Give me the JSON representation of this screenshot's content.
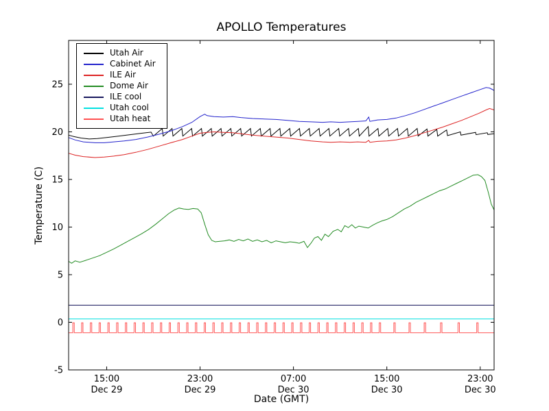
{
  "chart_data": {
    "type": "line",
    "title": "APOLLO Temperatures",
    "xlabel": "Date (GMT)",
    "ylabel": "Temperature (C)",
    "xlim": [
      11.74,
      48.19
    ],
    "ylim": [
      -5,
      29.6
    ],
    "grid": false,
    "legend_position": "upper left",
    "x_ticks": [
      {
        "value": 15,
        "label": [
          "15:00",
          "Dec 29"
        ]
      },
      {
        "value": 23,
        "label": [
          "23:00",
          "Dec 29"
        ]
      },
      {
        "value": 31,
        "label": [
          "07:00",
          "Dec 30"
        ]
      },
      {
        "value": 39,
        "label": [
          "15:00",
          "Dec 30"
        ]
      },
      {
        "value": 47,
        "label": [
          "23:00",
          "Dec 30"
        ]
      }
    ],
    "y_ticks": [
      {
        "value": -5,
        "label": "-5"
      },
      {
        "value": 0,
        "label": "0"
      },
      {
        "value": 5,
        "label": "5"
      },
      {
        "value": 10,
        "label": "10"
      },
      {
        "value": 15,
        "label": "15"
      },
      {
        "value": 20,
        "label": "20"
      },
      {
        "value": 25,
        "label": "25"
      }
    ],
    "series": [
      {
        "name": "Utah Air",
        "color": "#000000",
        "type": "line",
        "points": [
          [
            11.74,
            19.65
          ],
          [
            12.2,
            19.5
          ],
          [
            12.8,
            19.35
          ],
          [
            13.5,
            19.25
          ],
          [
            14.2,
            19.3
          ],
          [
            15.0,
            19.4
          ],
          [
            16.0,
            19.55
          ],
          [
            17.0,
            19.7
          ],
          [
            18.0,
            19.85
          ],
          [
            18.8,
            19.97
          ],
          [
            19.0,
            19.55
          ],
          [
            19.76,
            20.35
          ],
          [
            19.84,
            19.55
          ],
          [
            20.6,
            20.35
          ],
          [
            20.68,
            19.55
          ],
          [
            21.44,
            20.35
          ],
          [
            21.52,
            19.55
          ],
          [
            22.28,
            20.35
          ],
          [
            22.36,
            19.55
          ],
          [
            23.12,
            20.35
          ],
          [
            23.2,
            19.55
          ],
          [
            23.96,
            20.35
          ],
          [
            24.04,
            19.55
          ],
          [
            24.8,
            20.35
          ],
          [
            24.88,
            19.55
          ],
          [
            25.64,
            20.35
          ],
          [
            25.72,
            19.55
          ],
          [
            26.48,
            20.35
          ],
          [
            26.56,
            19.55
          ],
          [
            27.32,
            20.35
          ],
          [
            27.4,
            19.55
          ],
          [
            28.16,
            20.35
          ],
          [
            28.24,
            19.55
          ],
          [
            29.0,
            20.35
          ],
          [
            29.08,
            19.55
          ],
          [
            29.84,
            20.35
          ],
          [
            29.92,
            19.55
          ],
          [
            30.68,
            20.35
          ],
          [
            30.76,
            19.55
          ],
          [
            31.52,
            20.35
          ],
          [
            31.6,
            19.55
          ],
          [
            32.36,
            20.35
          ],
          [
            32.44,
            19.55
          ],
          [
            33.2,
            20.35
          ],
          [
            33.28,
            19.55
          ],
          [
            34.04,
            20.35
          ],
          [
            34.12,
            19.55
          ],
          [
            34.88,
            20.35
          ],
          [
            34.96,
            19.55
          ],
          [
            35.72,
            20.35
          ],
          [
            35.8,
            19.55
          ],
          [
            36.56,
            20.35
          ],
          [
            36.64,
            19.55
          ],
          [
            37.4,
            20.55
          ],
          [
            37.48,
            19.55
          ],
          [
            38.24,
            20.35
          ],
          [
            38.32,
            19.55
          ],
          [
            39.08,
            20.35
          ],
          [
            39.16,
            19.55
          ],
          [
            39.92,
            20.35
          ],
          [
            40.0,
            19.55
          ],
          [
            40.76,
            20.35
          ],
          [
            40.84,
            19.55
          ],
          [
            41.6,
            20.35
          ],
          [
            41.68,
            19.55
          ],
          [
            42.44,
            20.3
          ],
          [
            42.52,
            19.55
          ],
          [
            43.28,
            20.25
          ],
          [
            43.36,
            19.55
          ],
          [
            44.12,
            20.2
          ],
          [
            44.2,
            19.6
          ],
          [
            45.3,
            20.0
          ],
          [
            45.35,
            19.65
          ],
          [
            46.6,
            19.95
          ],
          [
            46.65,
            19.7
          ],
          [
            47.6,
            19.9
          ],
          [
            47.65,
            19.72
          ],
          [
            48.19,
            19.8
          ]
        ]
      },
      {
        "name": "Cabinet Air",
        "color": "#2222cc",
        "type": "line",
        "points": [
          [
            11.74,
            19.4
          ],
          [
            12.3,
            19.15
          ],
          [
            13.0,
            18.95
          ],
          [
            14.0,
            18.85
          ],
          [
            14.8,
            18.85
          ],
          [
            15.6,
            18.95
          ],
          [
            16.5,
            19.05
          ],
          [
            17.5,
            19.2
          ],
          [
            18.5,
            19.45
          ],
          [
            19.5,
            19.75
          ],
          [
            20.5,
            20.1
          ],
          [
            21.5,
            20.55
          ],
          [
            22.3,
            21.0
          ],
          [
            23.0,
            21.6
          ],
          [
            23.4,
            21.85
          ],
          [
            23.6,
            21.7
          ],
          [
            24.2,
            21.6
          ],
          [
            25.0,
            21.55
          ],
          [
            25.8,
            21.6
          ],
          [
            26.5,
            21.5
          ],
          [
            27.5,
            21.4
          ],
          [
            28.5,
            21.35
          ],
          [
            29.5,
            21.3
          ],
          [
            30.5,
            21.2
          ],
          [
            31.5,
            21.1
          ],
          [
            32.5,
            21.05
          ],
          [
            33.5,
            21.0
          ],
          [
            34.2,
            21.05
          ],
          [
            35.0,
            21.0
          ],
          [
            35.8,
            21.05
          ],
          [
            36.5,
            21.1
          ],
          [
            37.2,
            21.15
          ],
          [
            37.45,
            21.55
          ],
          [
            37.55,
            21.1
          ],
          [
            38.2,
            21.25
          ],
          [
            39.0,
            21.3
          ],
          [
            39.8,
            21.45
          ],
          [
            40.6,
            21.7
          ],
          [
            41.4,
            22.0
          ],
          [
            42.2,
            22.35
          ],
          [
            43.0,
            22.7
          ],
          [
            43.8,
            23.05
          ],
          [
            44.6,
            23.4
          ],
          [
            45.4,
            23.75
          ],
          [
            46.2,
            24.1
          ],
          [
            46.9,
            24.4
          ],
          [
            47.5,
            24.65
          ],
          [
            47.8,
            24.6
          ],
          [
            48.19,
            24.35
          ]
        ]
      },
      {
        "name": "ILE Air",
        "color": "#dd2222",
        "type": "line",
        "points": [
          [
            11.74,
            17.75
          ],
          [
            12.3,
            17.55
          ],
          [
            13.0,
            17.4
          ],
          [
            14.0,
            17.3
          ],
          [
            14.8,
            17.35
          ],
          [
            15.6,
            17.45
          ],
          [
            16.5,
            17.6
          ],
          [
            17.5,
            17.85
          ],
          [
            18.5,
            18.15
          ],
          [
            19.5,
            18.5
          ],
          [
            20.5,
            18.85
          ],
          [
            21.5,
            19.2
          ],
          [
            22.3,
            19.55
          ],
          [
            23.0,
            19.85
          ],
          [
            23.6,
            19.95
          ],
          [
            24.2,
            20.0
          ],
          [
            25.0,
            19.95
          ],
          [
            25.8,
            19.9
          ],
          [
            26.5,
            19.8
          ],
          [
            27.5,
            19.65
          ],
          [
            28.5,
            19.55
          ],
          [
            29.5,
            19.45
          ],
          [
            30.5,
            19.35
          ],
          [
            31.5,
            19.2
          ],
          [
            32.5,
            19.05
          ],
          [
            33.5,
            18.95
          ],
          [
            34.2,
            18.9
          ],
          [
            35.0,
            18.95
          ],
          [
            35.8,
            18.9
          ],
          [
            36.5,
            18.95
          ],
          [
            37.2,
            18.9
          ],
          [
            37.45,
            19.1
          ],
          [
            37.55,
            18.9
          ],
          [
            38.2,
            19.0
          ],
          [
            39.0,
            19.05
          ],
          [
            39.8,
            19.15
          ],
          [
            40.6,
            19.35
          ],
          [
            41.4,
            19.6
          ],
          [
            42.2,
            19.9
          ],
          [
            43.0,
            20.2
          ],
          [
            43.8,
            20.5
          ],
          [
            44.6,
            20.85
          ],
          [
            45.4,
            21.2
          ],
          [
            46.2,
            21.6
          ],
          [
            46.9,
            21.95
          ],
          [
            47.5,
            22.3
          ],
          [
            47.8,
            22.45
          ],
          [
            48.19,
            22.3
          ]
        ]
      },
      {
        "name": "Dome Air",
        "color": "#228b22",
        "type": "line",
        "points": [
          [
            11.74,
            6.4
          ],
          [
            12.0,
            6.2
          ],
          [
            12.3,
            6.45
          ],
          [
            12.7,
            6.3
          ],
          [
            13.2,
            6.5
          ],
          [
            13.8,
            6.75
          ],
          [
            14.4,
            7.0
          ],
          [
            15.0,
            7.35
          ],
          [
            15.6,
            7.7
          ],
          [
            16.2,
            8.1
          ],
          [
            16.8,
            8.5
          ],
          [
            17.4,
            8.9
          ],
          [
            18.0,
            9.3
          ],
          [
            18.6,
            9.75
          ],
          [
            19.2,
            10.3
          ],
          [
            19.8,
            10.9
          ],
          [
            20.3,
            11.4
          ],
          [
            20.8,
            11.8
          ],
          [
            21.2,
            12.0
          ],
          [
            21.6,
            11.9
          ],
          [
            22.0,
            11.85
          ],
          [
            22.4,
            11.95
          ],
          [
            22.8,
            11.9
          ],
          [
            23.1,
            11.5
          ],
          [
            23.4,
            10.3
          ],
          [
            23.7,
            9.2
          ],
          [
            24.0,
            8.6
          ],
          [
            24.3,
            8.45
          ],
          [
            24.7,
            8.5
          ],
          [
            25.1,
            8.55
          ],
          [
            25.5,
            8.65
          ],
          [
            25.9,
            8.5
          ],
          [
            26.3,
            8.7
          ],
          [
            26.7,
            8.55
          ],
          [
            27.1,
            8.75
          ],
          [
            27.5,
            8.5
          ],
          [
            27.9,
            8.65
          ],
          [
            28.3,
            8.45
          ],
          [
            28.7,
            8.6
          ],
          [
            29.1,
            8.35
          ],
          [
            29.5,
            8.55
          ],
          [
            29.9,
            8.45
          ],
          [
            30.3,
            8.35
          ],
          [
            30.7,
            8.45
          ],
          [
            31.1,
            8.4
          ],
          [
            31.5,
            8.3
          ],
          [
            31.9,
            8.5
          ],
          [
            32.2,
            7.85
          ],
          [
            32.5,
            8.3
          ],
          [
            32.8,
            8.85
          ],
          [
            33.1,
            9.0
          ],
          [
            33.4,
            8.6
          ],
          [
            33.7,
            9.25
          ],
          [
            34.0,
            9.0
          ],
          [
            34.4,
            9.55
          ],
          [
            34.8,
            9.75
          ],
          [
            35.1,
            9.5
          ],
          [
            35.4,
            10.15
          ],
          [
            35.7,
            9.95
          ],
          [
            36.0,
            10.25
          ],
          [
            36.3,
            9.9
          ],
          [
            36.6,
            10.1
          ],
          [
            37.0,
            10.0
          ],
          [
            37.4,
            9.9
          ],
          [
            37.8,
            10.2
          ],
          [
            38.2,
            10.45
          ],
          [
            38.6,
            10.65
          ],
          [
            39.0,
            10.8
          ],
          [
            39.5,
            11.1
          ],
          [
            40.0,
            11.5
          ],
          [
            40.5,
            11.9
          ],
          [
            41.0,
            12.2
          ],
          [
            41.5,
            12.6
          ],
          [
            42.0,
            12.9
          ],
          [
            42.5,
            13.2
          ],
          [
            43.0,
            13.5
          ],
          [
            43.5,
            13.8
          ],
          [
            44.0,
            14.0
          ],
          [
            44.5,
            14.3
          ],
          [
            45.0,
            14.6
          ],
          [
            45.5,
            14.9
          ],
          [
            46.0,
            15.2
          ],
          [
            46.4,
            15.45
          ],
          [
            46.8,
            15.5
          ],
          [
            47.1,
            15.3
          ],
          [
            47.4,
            14.9
          ],
          [
            47.7,
            13.6
          ],
          [
            47.95,
            12.4
          ],
          [
            48.19,
            11.8
          ]
        ]
      },
      {
        "name": "ILE cool",
        "color": "#16165c",
        "type": "line",
        "points": [
          [
            11.74,
            1.8
          ],
          [
            48.19,
            1.8
          ]
        ]
      },
      {
        "name": "Utah cool",
        "color": "#00e0e0",
        "type": "line",
        "points": [
          [
            11.74,
            0.35
          ],
          [
            48.19,
            0.35
          ]
        ]
      },
      {
        "name": "Utah heat",
        "color": "#ff5050",
        "type": "pulse",
        "baseline": -1.1,
        "peak": -0.05,
        "width": 0.12,
        "times": [
          12.1,
          12.85,
          13.6,
          14.35,
          15.1,
          15.85,
          16.6,
          17.35,
          18.1,
          18.85,
          19.6,
          20.35,
          21.1,
          21.85,
          22.6,
          23.35,
          24.1,
          24.85,
          25.6,
          26.35,
          27.1,
          27.85,
          28.6,
          29.35,
          30.1,
          30.85,
          31.6,
          32.35,
          33.1,
          33.85,
          34.6,
          35.35,
          36.1,
          36.85,
          37.6,
          38.35,
          39.6,
          40.9,
          42.2,
          43.6,
          45.1,
          46.7
        ]
      }
    ]
  }
}
